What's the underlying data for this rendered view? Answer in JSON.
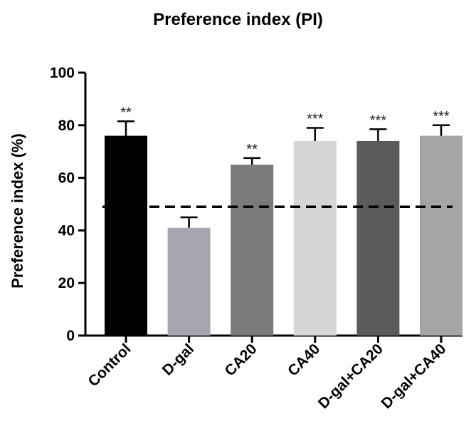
{
  "chart_data": {
    "type": "bar",
    "title": "Preference index (PI)",
    "ylabel": "Preference index (%)",
    "xlabel": "",
    "ylim": [
      0,
      100
    ],
    "yticks": [
      0,
      20,
      40,
      60,
      80,
      100
    ],
    "categories": [
      "Control",
      "D-gal",
      "CA20",
      "CA40",
      "D-gal+CA20",
      "D-gal+CA40"
    ],
    "values": [
      76,
      41,
      65,
      74,
      74,
      76
    ],
    "errors": [
      5.5,
      4,
      2.5,
      5,
      4.5,
      4
    ],
    "significance": [
      "**",
      "",
      "**",
      "***",
      "***",
      "***"
    ],
    "reference_line": 49,
    "grid": false,
    "colors": [
      "#000000",
      "#a7a6ae",
      "#7a7a7a",
      "#d6d6d6",
      "#5a5a5a",
      "#a5a5a5"
    ]
  }
}
